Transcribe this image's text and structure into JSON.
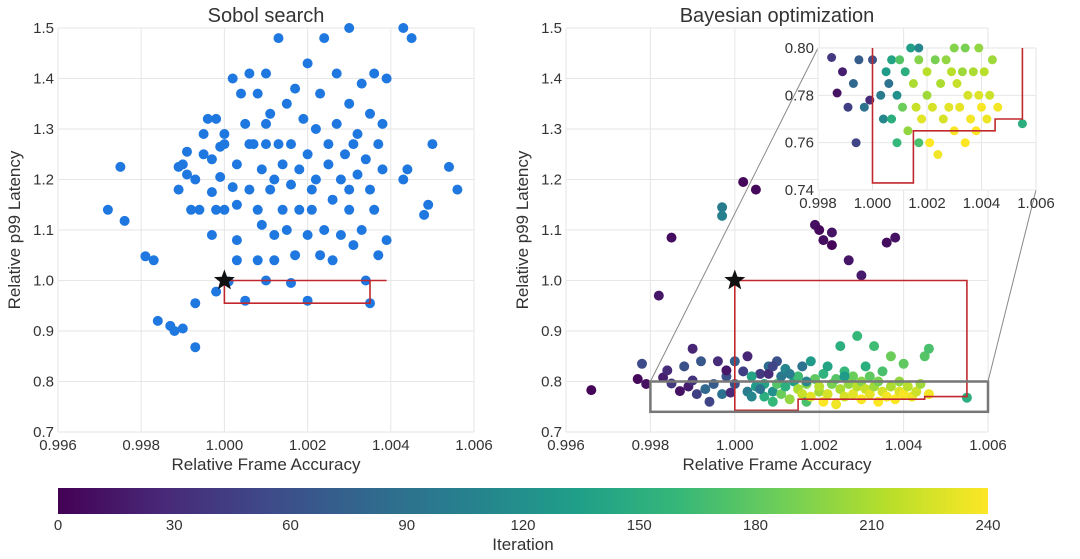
{
  "chart_data": [
    {
      "type": "scatter",
      "title": "Sobol search",
      "xlabel": "Relative Frame Accuracy",
      "ylabel": "Relative p99 Latency",
      "xlim": [
        0.996,
        1.006
      ],
      "ylim": [
        0.7,
        1.5
      ],
      "xticks": [
        "0.996",
        "0.998",
        "1.000",
        "1.002",
        "1.004",
        "1.006"
      ],
      "yticks": [
        "0.7",
        "0.8",
        "0.9",
        "1.0",
        "1.1",
        "1.2",
        "1.3",
        "1.4",
        "1.5"
      ],
      "grid": true,
      "point_color": "#1f77e0",
      "reference_star": {
        "x": 1.0,
        "y": 1.0
      },
      "pareto_front": [
        [
          1.0,
          1.0
        ],
        [
          1.0,
          0.955
        ],
        [
          1.0035,
          0.955
        ],
        [
          1.0035,
          1.0
        ],
        [
          1.0039,
          1.0
        ],
        [
          1.0,
          1.0
        ]
      ],
      "points": [
        [
          0.9972,
          1.14
        ],
        [
          0.9975,
          1.225
        ],
        [
          0.9976,
          1.118
        ],
        [
          0.9981,
          1.048
        ],
        [
          0.9983,
          1.04
        ],
        [
          0.9984,
          0.92
        ],
        [
          0.9987,
          0.91
        ],
        [
          0.9988,
          0.9
        ],
        [
          0.9989,
          1.18
        ],
        [
          0.9989,
          1.225
        ],
        [
          0.999,
          0.905
        ],
        [
          0.999,
          1.23
        ],
        [
          0.9991,
          1.21
        ],
        [
          0.9991,
          1.255
        ],
        [
          0.9992,
          1.14
        ],
        [
          0.9993,
          1.2
        ],
        [
          0.9993,
          0.955
        ],
        [
          0.9993,
          0.868
        ],
        [
          0.9994,
          1.14
        ],
        [
          0.9995,
          1.29
        ],
        [
          0.9995,
          1.25
        ],
        [
          0.9996,
          1.32
        ],
        [
          0.9997,
          1.09
        ],
        [
          0.9997,
          1.175
        ],
        [
          0.9997,
          1.24
        ],
        [
          0.9998,
          0.978
        ],
        [
          0.9998,
          1.14
        ],
        [
          0.9998,
          1.32
        ],
        [
          0.9999,
          1.265
        ],
        [
          0.9999,
          1.205
        ],
        [
          1.0,
          1.27
        ],
        [
          1.0,
          1.14
        ],
        [
          1.0,
          1.29
        ],
        [
          1.0001,
          0.998
        ],
        [
          1.0002,
          1.185
        ],
        [
          1.0002,
          1.4
        ],
        [
          1.0003,
          1.23
        ],
        [
          1.0003,
          1.08
        ],
        [
          1.0003,
          1.15
        ],
        [
          1.0003,
          1.04
        ],
        [
          1.0004,
          1.37
        ],
        [
          1.0005,
          1.31
        ],
        [
          1.0005,
          0.96
        ],
        [
          1.0006,
          1.27
        ],
        [
          1.0006,
          1.41
        ],
        [
          1.0006,
          1.18
        ],
        [
          1.0007,
          1.27
        ],
        [
          1.0008,
          1.37
        ],
        [
          1.0008,
          1.04
        ],
        [
          1.0008,
          1.14
        ],
        [
          1.0009,
          1.22
        ],
        [
          1.0009,
          1.11
        ],
        [
          1.001,
          1.27
        ],
        [
          1.001,
          1.31
        ],
        [
          1.001,
          1.0
        ],
        [
          1.001,
          1.41
        ],
        [
          1.0011,
          1.18
        ],
        [
          1.0011,
          1.33
        ],
        [
          1.0012,
          1.04
        ],
        [
          1.0012,
          1.09
        ],
        [
          1.0012,
          1.2
        ],
        [
          1.0013,
          1.48
        ],
        [
          1.0013,
          1.27
        ],
        [
          1.0014,
          1.14
        ],
        [
          1.0014,
          1.23
        ],
        [
          1.0015,
          1.35
        ],
        [
          1.0015,
          1.1
        ],
        [
          1.0016,
          0.995
        ],
        [
          1.0016,
          1.27
        ],
        [
          1.0016,
          1.19
        ],
        [
          1.0017,
          1.05
        ],
        [
          1.0017,
          1.38
        ],
        [
          1.0018,
          1.14
        ],
        [
          1.0018,
          1.22
        ],
        [
          1.0019,
          1.32
        ],
        [
          1.002,
          1.25
        ],
        [
          1.002,
          0.96
        ],
        [
          1.002,
          1.09
        ],
        [
          1.002,
          1.43
        ],
        [
          1.0021,
          1.18
        ],
        [
          1.0021,
          1.14
        ],
        [
          1.0022,
          1.3
        ],
        [
          1.0022,
          1.2
        ],
        [
          1.0023,
          1.05
        ],
        [
          1.0023,
          1.37
        ],
        [
          1.0024,
          1.48
        ],
        [
          1.0024,
          1.1
        ],
        [
          1.0025,
          1.23
        ],
        [
          1.0025,
          1.27
        ],
        [
          1.0026,
          1.16
        ],
        [
          1.0026,
          1.04
        ],
        [
          1.0027,
          1.41
        ],
        [
          1.0027,
          1.31
        ],
        [
          1.0028,
          1.2
        ],
        [
          1.0028,
          1.09
        ],
        [
          1.0029,
          1.25
        ],
        [
          1.003,
          1.5
        ],
        [
          1.003,
          1.18
        ],
        [
          1.003,
          1.14
        ],
        [
          1.003,
          1.35
        ],
        [
          1.0031,
          1.27
        ],
        [
          1.0031,
          1.07
        ],
        [
          1.0032,
          1.21
        ],
        [
          1.0032,
          1.29
        ],
        [
          1.0033,
          1.39
        ],
        [
          1.0033,
          1.1
        ],
        [
          1.0034,
          1.0
        ],
        [
          1.0034,
          1.24
        ],
        [
          1.0035,
          0.955
        ],
        [
          1.0035,
          1.33
        ],
        [
          1.0035,
          1.18
        ],
        [
          1.0036,
          1.41
        ],
        [
          1.0036,
          1.14
        ],
        [
          1.0037,
          1.27
        ],
        [
          1.0037,
          1.05
        ],
        [
          1.0038,
          1.31
        ],
        [
          1.0038,
          1.22
        ],
        [
          1.0039,
          1.4
        ],
        [
          1.0039,
          1.08
        ],
        [
          1.0044,
          1.22
        ],
        [
          1.0043,
          1.5
        ],
        [
          1.0045,
          1.48
        ],
        [
          1.0048,
          1.13
        ],
        [
          1.0049,
          1.15
        ],
        [
          1.005,
          1.27
        ],
        [
          1.0054,
          1.225
        ],
        [
          1.0056,
          1.18
        ],
        [
          1.0043,
          1.2
        ]
      ]
    },
    {
      "type": "scatter",
      "title": "Bayesian optimization",
      "xlabel": "Relative Frame Accuracy",
      "ylabel": "Relative p99 Latency",
      "xlim": [
        0.996,
        1.006
      ],
      "ylim": [
        0.7,
        1.5
      ],
      "xticks": [
        "0.996",
        "0.998",
        "1.000",
        "1.002",
        "1.004",
        "1.006"
      ],
      "yticks": [
        "0.7",
        "0.8",
        "0.9",
        "1.0",
        "1.1",
        "1.2",
        "1.3",
        "1.4",
        "1.5"
      ],
      "grid": true,
      "color_by": "iteration",
      "reference_star": {
        "x": 1.0,
        "y": 1.0
      },
      "pareto_front": [
        [
          1.0,
          1.0
        ],
        [
          1.0,
          0.743
        ],
        [
          1.0015,
          0.743
        ],
        [
          1.0015,
          0.765
        ],
        [
          1.0045,
          0.765
        ],
        [
          1.0045,
          0.77
        ],
        [
          1.0055,
          0.77
        ],
        [
          1.0055,
          1.0
        ],
        [
          1.0,
          1.0
        ]
      ],
      "zoom_box": {
        "xlim": [
          0.998,
          1.006
        ],
        "ylim": [
          0.74,
          0.8
        ]
      },
      "inset": {
        "xlim": [
          0.998,
          1.006
        ],
        "ylim": [
          0.74,
          0.8
        ],
        "xticks": [
          "0.998",
          "1.000",
          "1.002",
          "1.004",
          "1.006"
        ],
        "yticks": [
          "0.74",
          "0.76",
          "0.78",
          "0.80"
        ]
      },
      "points": [
        [
          0.9966,
          0.783,
          2
        ],
        [
          0.9977,
          0.805,
          5
        ],
        [
          0.9978,
          0.835,
          55
        ],
        [
          0.9979,
          0.795,
          10
        ],
        [
          0.9982,
          0.97,
          15
        ],
        [
          0.9983,
          0.808,
          20
        ],
        [
          0.9984,
          0.822,
          30
        ],
        [
          0.9985,
          0.796,
          40
        ],
        [
          0.9985,
          1.085,
          8
        ],
        [
          0.9987,
          0.781,
          12
        ],
        [
          0.9988,
          0.83,
          60
        ],
        [
          0.9989,
          0.79,
          20
        ],
        [
          0.999,
          0.865,
          25
        ],
        [
          0.999,
          0.802,
          35
        ],
        [
          0.9991,
          0.775,
          45
        ],
        [
          0.9992,
          0.84,
          65
        ],
        [
          0.9993,
          0.785,
          80
        ],
        [
          0.9994,
          0.76,
          50
        ],
        [
          0.9995,
          0.795,
          70
        ],
        [
          0.9996,
          0.84,
          30
        ],
        [
          0.9997,
          0.775,
          90
        ],
        [
          0.9997,
          1.145,
          100
        ],
        [
          0.9997,
          1.128,
          105
        ],
        [
          0.9998,
          0.81,
          60
        ],
        [
          0.9998,
          0.822,
          15
        ],
        [
          0.9999,
          0.778,
          28
        ],
        [
          1.0,
          0.84,
          75
        ],
        [
          1.0,
          0.795,
          60
        ],
        [
          1.0002,
          0.82,
          45
        ],
        [
          1.0002,
          1.195,
          4
        ],
        [
          1.0003,
          0.85,
          25
        ],
        [
          1.0003,
          0.78,
          100
        ],
        [
          1.0004,
          0.77,
          110
        ],
        [
          1.0005,
          1.18,
          6
        ],
        [
          1.0005,
          0.79,
          130
        ],
        [
          1.0006,
          0.815,
          40
        ],
        [
          1.0007,
          0.795,
          140
        ],
        [
          1.0007,
          0.77,
          150
        ],
        [
          1.0008,
          0.83,
          85
        ],
        [
          1.0008,
          0.815,
          30
        ],
        [
          1.0009,
          0.76,
          160
        ],
        [
          1.0009,
          0.78,
          120
        ],
        [
          1.001,
          0.795,
          175
        ],
        [
          1.001,
          0.84,
          60
        ],
        [
          1.0011,
          0.81,
          95
        ],
        [
          1.0011,
          0.775,
          185
        ],
        [
          1.0012,
          0.79,
          150
        ],
        [
          1.0012,
          0.825,
          110
        ],
        [
          1.0013,
          0.765,
          200
        ],
        [
          1.0014,
          0.8,
          135
        ],
        [
          1.0015,
          0.785,
          210
        ],
        [
          1.0015,
          0.81,
          165
        ],
        [
          1.0016,
          0.775,
          220
        ],
        [
          1.0016,
          0.83,
          90
        ],
        [
          1.0017,
          0.76,
          170
        ],
        [
          1.0017,
          0.795,
          195
        ],
        [
          1.0018,
          0.84,
          130
        ],
        [
          1.0018,
          0.77,
          230
        ],
        [
          1.0019,
          0.805,
          180
        ],
        [
          1.0019,
          1.11,
          10
        ],
        [
          1.002,
          0.78,
          205
        ],
        [
          1.002,
          0.79,
          215
        ],
        [
          1.002,
          1.1,
          5
        ],
        [
          1.0021,
          0.76,
          240
        ],
        [
          1.0021,
          0.815,
          155
        ],
        [
          1.0021,
          1.08,
          8
        ],
        [
          1.0022,
          0.775,
          225
        ],
        [
          1.0022,
          0.83,
          140
        ],
        [
          1.0023,
          0.795,
          190
        ],
        [
          1.0023,
          1.07,
          3
        ],
        [
          1.0023,
          1.095,
          12
        ],
        [
          1.0024,
          0.755,
          235
        ],
        [
          1.0024,
          0.805,
          175
        ],
        [
          1.0025,
          0.785,
          210
        ],
        [
          1.0025,
          0.87,
          150
        ],
        [
          1.0026,
          0.77,
          225
        ],
        [
          1.0026,
          0.82,
          160
        ],
        [
          1.0027,
          0.795,
          200
        ],
        [
          1.0027,
          1.04,
          14
        ],
        [
          1.0028,
          0.775,
          230
        ],
        [
          1.0028,
          0.81,
          185
        ],
        [
          1.0029,
          0.79,
          215
        ],
        [
          1.0029,
          0.89,
          160
        ],
        [
          1.003,
          0.765,
          238
        ],
        [
          1.003,
          0.8,
          195
        ],
        [
          1.003,
          1.01,
          18
        ],
        [
          1.0031,
          0.785,
          220
        ],
        [
          1.0031,
          0.83,
          150
        ],
        [
          1.0032,
          0.775,
          232
        ],
        [
          1.0032,
          0.81,
          180
        ],
        [
          1.0033,
          0.79,
          205
        ],
        [
          1.0033,
          0.87,
          165
        ],
        [
          1.0034,
          0.76,
          240
        ],
        [
          1.0034,
          0.8,
          190
        ],
        [
          1.0035,
          0.78,
          225
        ],
        [
          1.0035,
          0.82,
          170
        ],
        [
          1.0036,
          0.77,
          236
        ],
        [
          1.0036,
          1.075,
          8
        ],
        [
          1.0037,
          0.79,
          210
        ],
        [
          1.0037,
          0.85,
          185
        ],
        [
          1.0038,
          0.765,
          240
        ],
        [
          1.0038,
          1.085,
          12
        ],
        [
          1.0039,
          0.8,
          200
        ],
        [
          1.0039,
          0.78,
          228
        ],
        [
          1.004,
          0.835,
          180
        ],
        [
          1.004,
          0.775,
          238
        ],
        [
          1.0041,
          0.79,
          215
        ],
        [
          1.0042,
          0.77,
          234
        ],
        [
          1.0043,
          0.78,
          222
        ],
        [
          1.0044,
          0.795,
          205
        ],
        [
          1.0045,
          0.85,
          175
        ],
        [
          1.0046,
          0.865,
          170
        ],
        [
          1.0046,
          0.775,
          236
        ],
        [
          1.0055,
          0.768,
          150
        ],
        [
          1.0004,
          0.81,
          140
        ],
        [
          1.0013,
          0.815,
          100
        ],
        [
          1.0017,
          0.8,
          110
        ],
        [
          1.0006,
          0.785,
          90
        ],
        [
          1.0009,
          0.83,
          50
        ],
        [
          1.0026,
          0.81,
          130
        ]
      ]
    }
  ],
  "colorbar": {
    "label": "Iteration",
    "min": 0,
    "max": 240,
    "ticks": [
      "0",
      "30",
      "60",
      "90",
      "120",
      "150",
      "180",
      "210",
      "240"
    ],
    "colormap": [
      "#440154",
      "#482878",
      "#3e4989",
      "#31688e",
      "#26828e",
      "#1f9e89",
      "#35b779",
      "#6ece58",
      "#b5de2b",
      "#fde725"
    ]
  }
}
